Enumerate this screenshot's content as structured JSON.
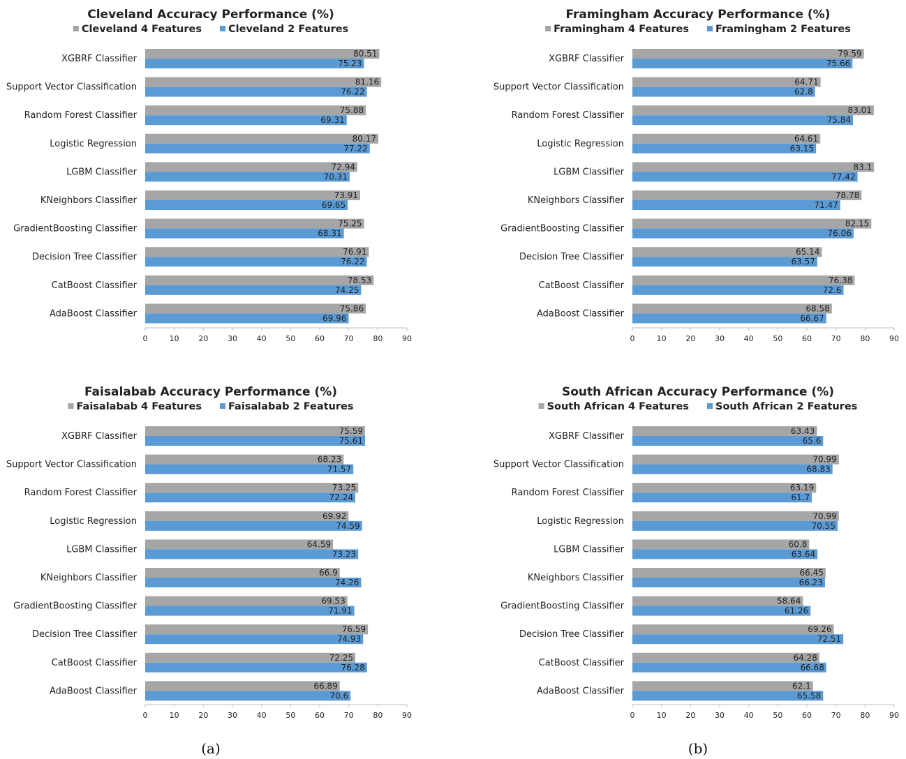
{
  "colors": {
    "four": "#a6a6a6",
    "two": "#5b9bd5",
    "axis": "#bfbfbf"
  },
  "captions": {
    "a": "(a)",
    "b": "(b)"
  },
  "chart_data": [
    {
      "type": "bar",
      "orientation": "horizontal",
      "title": "Cleveland Accuracy Performance (%)",
      "categories": [
        "XGBRF Classifier",
        "Support Vector Classification",
        "Random Forest Classifier",
        "Logistic Regression",
        "LGBM Classifier",
        "KNeighbors Classifier",
        "GradientBoosting Classifier",
        "Decision Tree Classifier",
        "CatBoost Classifier",
        "AdaBoost Classifier"
      ],
      "series": [
        {
          "name": "Cleveland 4 Features",
          "values": [
            80.51,
            81.16,
            75.88,
            80.17,
            72.94,
            73.91,
            75.25,
            76.91,
            78.53,
            75.86
          ]
        },
        {
          "name": "Cleveland 2 Features",
          "values": [
            75.23,
            76.22,
            69.31,
            77.22,
            70.31,
            69.65,
            68.31,
            76.22,
            74.25,
            69.96
          ]
        }
      ],
      "xlim": [
        0,
        90
      ],
      "xticks": [
        "0",
        "10",
        "20",
        "30",
        "40",
        "50",
        "60",
        "70",
        "80",
        "90"
      ],
      "legend": "top",
      "grid": false
    },
    {
      "type": "bar",
      "orientation": "horizontal",
      "title": "Framingham Accuracy Performance (%)",
      "categories": [
        "XGBRF Classifier",
        "Support Vector Classification",
        "Random Forest Classifier",
        "Logistic Regression",
        "LGBM Classifier",
        "KNeighbors Classifier",
        "GradientBoosting Classifier",
        "Decision Tree Classifier",
        "CatBoost Classifier",
        "AdaBoost Classifier"
      ],
      "series": [
        {
          "name": "Framingham 4 Features",
          "values": [
            79.59,
            64.71,
            83.01,
            64.61,
            83.1,
            78.78,
            82.15,
            65.14,
            76.38,
            68.58
          ]
        },
        {
          "name": "Framingham 2 Features",
          "values": [
            75.66,
            62.8,
            75.84,
            63.15,
            77.42,
            71.47,
            76.06,
            63.57,
            72.6,
            66.67
          ]
        }
      ],
      "xlim": [
        0,
        90
      ],
      "xticks": [
        "0",
        "10",
        "20",
        "30",
        "40",
        "50",
        "60",
        "70",
        "80",
        "90"
      ],
      "legend": "top",
      "grid": false
    },
    {
      "type": "bar",
      "orientation": "horizontal",
      "title": "Faisalabab Accuracy Performance (%)",
      "categories": [
        "XGBRF Classifier",
        "Support Vector Classification",
        "Random Forest Classifier",
        "Logistic Regression",
        "LGBM Classifier",
        "KNeighbors Classifier",
        "GradientBoosting Classifier",
        "Decision Tree Classifier",
        "CatBoost Classifier",
        "AdaBoost Classifier"
      ],
      "series": [
        {
          "name": "Faisalabab 4 Features",
          "values": [
            75.59,
            68.23,
            73.25,
            69.92,
            64.59,
            66.9,
            69.53,
            76.59,
            72.25,
            66.89
          ]
        },
        {
          "name": "Faisalabab 2 Features",
          "values": [
            75.61,
            71.57,
            72.24,
            74.59,
            73.23,
            74.26,
            71.91,
            74.93,
            76.28,
            70.6
          ]
        }
      ],
      "xlim": [
        0,
        90
      ],
      "xticks": [
        "0",
        "10",
        "20",
        "30",
        "40",
        "50",
        "60",
        "70",
        "80",
        "90"
      ],
      "legend": "top",
      "grid": false
    },
    {
      "type": "bar",
      "orientation": "horizontal",
      "title": "South African Accuracy Performance (%)",
      "categories": [
        "XGBRF Classifier",
        "Support Vector Classification",
        "Random Forest Classifier",
        "Logistic Regression",
        "LGBM Classifier",
        "KNeighbors Classifier",
        "GradientBoosting Classifier",
        "Decision Tree Classifier",
        "CatBoost Classifier",
        "AdaBoost Classifier"
      ],
      "series": [
        {
          "name": "South African 4 Features",
          "values": [
            63.43,
            70.99,
            63.19,
            70.99,
            60.8,
            66.45,
            58.64,
            69.26,
            64.28,
            62.1
          ]
        },
        {
          "name": "South African 2 Features",
          "values": [
            65.6,
            68.83,
            61.7,
            70.55,
            63.64,
            66.23,
            61.26,
            72.51,
            66.68,
            65.58
          ]
        }
      ],
      "xlim": [
        0,
        90
      ],
      "xticks": [
        "0",
        "10",
        "20",
        "30",
        "40",
        "50",
        "60",
        "70",
        "80",
        "90"
      ],
      "legend": "top",
      "grid": false
    }
  ]
}
